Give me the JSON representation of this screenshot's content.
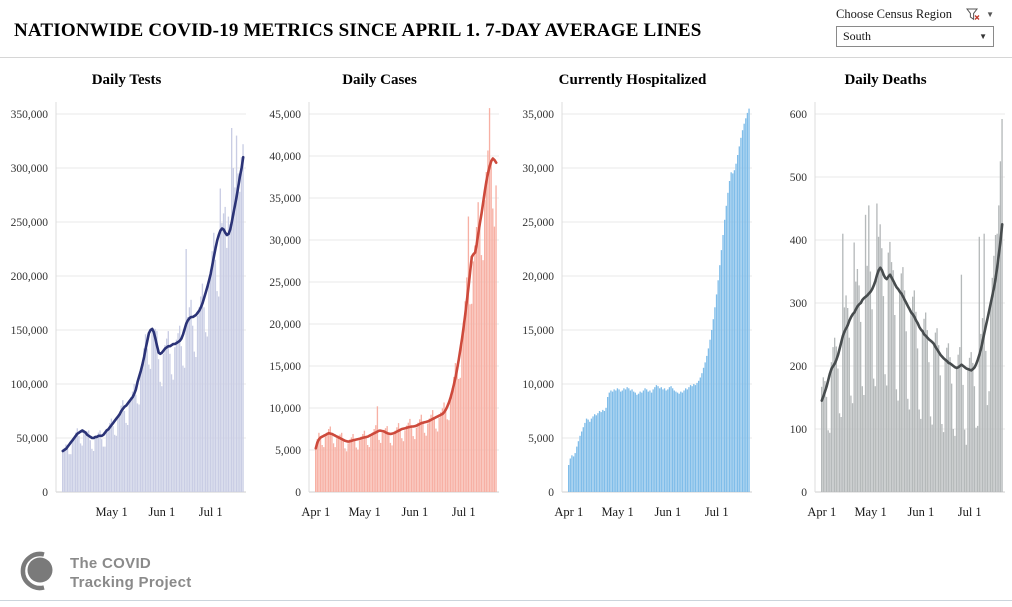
{
  "header": {
    "title": "NATIONWIDE COVID-19 METRICS SINCE APRIL 1. 7-DAY AVERAGE LINES"
  },
  "filter": {
    "label": "Choose Census Region",
    "value": "South",
    "funnel_icon": "clear-filter-funnel-with-red-x",
    "caret": "▼"
  },
  "footer": {
    "logo_line1": "The COVID",
    "logo_line2": "Tracking Project"
  },
  "chart_data": [
    {
      "type": "bar+line",
      "title": "Daily Tests",
      "x_ticks": {
        "days": [
          30,
          61,
          91
        ],
        "labels": [
          "May 1",
          "Jun 1",
          "Jul 1"
        ]
      },
      "y_ticks": [
        0,
        50000,
        100000,
        150000,
        200000,
        250000,
        300000,
        350000
      ],
      "ylim": [
        0,
        364000
      ],
      "grid": true,
      "legend": "none",
      "bar_color": "#c9cde4",
      "line_color": "#2b3377",
      "bars": [
        39000,
        41000,
        44000,
        40000,
        35000,
        35000,
        47000,
        51000,
        55000,
        59000,
        52000,
        45000,
        43000,
        55000,
        56000,
        56000,
        57000,
        48000,
        40000,
        38000,
        50000,
        52000,
        55000,
        57000,
        49000,
        42000,
        42000,
        56000,
        59000,
        64000,
        68000,
        61000,
        53000,
        52000,
        69000,
        73000,
        80000,
        85000,
        75000,
        64000,
        62000,
        82000,
        88000,
        93000,
        100000,
        90000,
        82000,
        81000,
        110000,
        120000,
        133000,
        146000,
        133000,
        118000,
        114000,
        148000,
        151000,
        151000,
        149000,
        123000,
        102000,
        98000,
        128000,
        136000,
        142000,
        149000,
        128000,
        109000,
        104000,
        134000,
        141000,
        147000,
        154000,
        135000,
        117000,
        115000,
        225000,
        162000,
        171000,
        178000,
        154000,
        130000,
        125000,
        163000,
        171000,
        181000,
        193000,
        171000,
        148000,
        144000,
        192000,
        206000,
        223000,
        240000,
        215000,
        186000,
        181000,
        281000,
        249000,
        258000,
        264000,
        226000,
        255000,
        248000,
        337000,
        300000,
        282000,
        330000,
        295000,
        278000,
        310000,
        322000
      ],
      "line": [
        38000,
        39000,
        40000,
        42000,
        44000,
        46000,
        48000,
        50000,
        52000,
        54000,
        55000,
        56000,
        57000,
        56000,
        55000,
        53000,
        52000,
        51000,
        50000,
        50000,
        51000,
        51000,
        52000,
        52000,
        52000,
        53000,
        55000,
        57000,
        58000,
        60000,
        62000,
        64000,
        66000,
        68000,
        70000,
        72000,
        75000,
        77000,
        79000,
        80000,
        82000,
        84000,
        86000,
        88000,
        91000,
        95000,
        102000,
        107000,
        112000,
        118000,
        125000,
        133000,
        140000,
        147000,
        150000,
        151000,
        148000,
        142000,
        135000,
        129000,
        128000,
        129000,
        131000,
        133000,
        134000,
        135000,
        135000,
        136000,
        137000,
        137000,
        138000,
        139000,
        140000,
        142000,
        146000,
        151000,
        156000,
        159000,
        161000,
        162000,
        162000,
        163000,
        164000,
        166000,
        168000,
        171000,
        175000,
        180000,
        185000,
        190000,
        196000,
        202000,
        210000,
        218000,
        226000,
        233000,
        238000,
        242000,
        244000,
        243000,
        240000,
        238000,
        239000,
        243000,
        250000,
        258000,
        266000,
        274000,
        283000,
        292000,
        300000,
        310000
      ]
    },
    {
      "type": "bar+line",
      "title": "Daily Cases",
      "x_ticks": {
        "days": [
          0,
          30,
          61,
          91
        ],
        "labels": [
          "Apr 1",
          "May 1",
          "Jun 1",
          "Jul 1"
        ]
      },
      "y_ticks": [
        0,
        5000,
        10000,
        15000,
        20000,
        25000,
        30000,
        35000,
        40000,
        45000
      ],
      "ylim": [
        0,
        46500
      ],
      "grid": true,
      "legend": "none",
      "bar_color": "#f7b0a4",
      "line_color": "#cd4a3c",
      "bars": [
        5350,
        6300,
        7050,
        6500,
        5600,
        5350,
        6600,
        7100,
        7500,
        7800,
        6900,
        5800,
        5350,
        6400,
        6700,
        6850,
        7050,
        6200,
        5200,
        4850,
        5800,
        6250,
        6500,
        6900,
        6200,
        5300,
        5050,
        6150,
        6600,
        6900,
        7300,
        6550,
        5600,
        5350,
        6600,
        7100,
        7500,
        7950,
        10200,
        6200,
        5850,
        7050,
        7400,
        7600,
        7850,
        6950,
        5850,
        5550,
        6800,
        7300,
        7700,
        8200,
        7400,
        6400,
        6050,
        7350,
        7900,
        8250,
        8700,
        7800,
        6650,
        6300,
        7650,
        8250,
        8650,
        9200,
        8250,
        7050,
        6700,
        8150,
        8750,
        9200,
        9750,
        8800,
        7550,
        7200,
        8850,
        9500,
        9950,
        10650,
        9800,
        8650,
        8550,
        10950,
        12350,
        13700,
        15350,
        14700,
        13450,
        13600,
        17750,
        20300,
        22700,
        25550,
        32800,
        22350,
        22400,
        27450,
        29350,
        31550,
        34500,
        32000,
        28200,
        27600,
        34750,
        38100,
        40650,
        45700,
        39400,
        33750,
        31600,
        36500
      ],
      "line": [
        5200,
        5900,
        6300,
        6500,
        6600,
        6700,
        6800,
        6900,
        7000,
        6950,
        6900,
        6800,
        6700,
        6600,
        6500,
        6400,
        6300,
        6200,
        6100,
        6050,
        6000,
        6050,
        6100,
        6150,
        6200,
        6250,
        6300,
        6350,
        6400,
        6450,
        6500,
        6550,
        6600,
        6700,
        6800,
        6900,
        7000,
        7100,
        7200,
        7300,
        7300,
        7250,
        7200,
        7100,
        7000,
        6950,
        6900,
        6950,
        7000,
        7100,
        7200,
        7300,
        7400,
        7500,
        7550,
        7600,
        7650,
        7700,
        7750,
        7800,
        7800,
        7850,
        7900,
        8000,
        8100,
        8200,
        8250,
        8300,
        8350,
        8400,
        8500,
        8600,
        8700,
        8800,
        8900,
        9000,
        9100,
        9200,
        9300,
        9500,
        9800,
        10200,
        10700,
        11300,
        12000,
        12800,
        13700,
        14700,
        15800,
        17000,
        18300,
        19700,
        21200,
        22800,
        24500,
        26300,
        28000,
        28300,
        28500,
        29500,
        30800,
        32000,
        33200,
        34500,
        35800,
        37000,
        38000,
        38800,
        39400,
        39700,
        39500,
        39200
      ]
    },
    {
      "type": "bar",
      "title": "Currently Hospitalized",
      "x_ticks": {
        "days": [
          0,
          30,
          61,
          91
        ],
        "labels": [
          "Apr 1",
          "May 1",
          "Jun 1",
          "Jul 1"
        ]
      },
      "y_ticks": [
        0,
        5000,
        10000,
        15000,
        20000,
        25000,
        30000,
        35000
      ],
      "ylim": [
        0,
        36500
      ],
      "grid": true,
      "legend": "none",
      "bar_color": "#80bde9",
      "line_color": null,
      "bars": [
        2500,
        3100,
        3400,
        3300,
        3600,
        4200,
        4700,
        5200,
        5600,
        6000,
        6400,
        6800,
        6700,
        6500,
        6800,
        7000,
        7200,
        7100,
        7300,
        7500,
        7400,
        7600,
        7500,
        7800,
        8800,
        9200,
        9400,
        9300,
        9500,
        9400,
        9600,
        9500,
        9300,
        9400,
        9600,
        9500,
        9700,
        9600,
        9400,
        9500,
        9300,
        9200,
        9000,
        9100,
        9300,
        9200,
        9400,
        9600,
        9500,
        9300,
        9400,
        9200,
        9500,
        9700,
        9900,
        9800,
        9600,
        9700,
        9500,
        9600,
        9400,
        9500,
        9700,
        9800,
        9600,
        9400,
        9300,
        9200,
        9100,
        9300,
        9200,
        9400,
        9600,
        9500,
        9700,
        9900,
        9800,
        10000,
        9900,
        10100,
        10300,
        10600,
        11000,
        11500,
        12000,
        12600,
        13300,
        14100,
        15000,
        16000,
        17100,
        18300,
        19600,
        21000,
        22400,
        23800,
        25200,
        26500,
        27700,
        28800,
        29600,
        29500,
        29800,
        30400,
        31200,
        32000,
        32800,
        33500,
        34100,
        34600,
        35100,
        35500
      ],
      "line": null
    },
    {
      "type": "bar+line",
      "title": "Daily Deaths",
      "x_ticks": {
        "days": [
          0,
          30,
          61,
          91
        ],
        "labels": [
          "Apr 1",
          "May 1",
          "Jun 1",
          "Jul 1"
        ]
      },
      "y_ticks": [
        0,
        100,
        200,
        300,
        400,
        500,
        600
      ],
      "ylim": [
        0,
        620
      ],
      "grid": true,
      "legend": "none",
      "bar_color": "#b5b9ba",
      "line_color": "#474c4e",
      "bars": [
        167,
        182,
        176,
        151,
        98,
        94,
        206,
        230,
        245,
        231,
        196,
        125,
        119,
        410,
        293,
        312,
        292,
        245,
        153,
        141,
        396,
        334,
        354,
        328,
        270,
        168,
        154,
        440,
        359,
        455,
        350,
        290,
        180,
        168,
        458,
        405,
        425,
        387,
        311,
        187,
        169,
        380,
        397,
        365,
        352,
        281,
        163,
        145,
        318,
        347,
        357,
        320,
        255,
        148,
        131,
        285,
        310,
        320,
        286,
        228,
        131,
        116,
        255,
        275,
        285,
        257,
        206,
        120,
        107,
        235,
        253,
        260,
        233,
        185,
        108,
        95,
        210,
        229,
        236,
        214,
        172,
        100,
        89,
        197,
        218,
        230,
        345,
        170,
        99,
        75,
        195,
        213,
        222,
        205,
        168,
        102,
        105,
        405,
        251,
        276,
        410,
        224,
        138,
        160,
        300,
        340,
        375,
        408,
        410,
        455,
        525,
        592
      ],
      "line": [
        145,
        152,
        160,
        168,
        178,
        188,
        196,
        200,
        204,
        210,
        218,
        228,
        238,
        248,
        255,
        260,
        265,
        272,
        278,
        282,
        285,
        290,
        295,
        298,
        300,
        305,
        308,
        310,
        312,
        315,
        318,
        322,
        328,
        335,
        345,
        352,
        356,
        352,
        345,
        340,
        338,
        342,
        345,
        340,
        335,
        330,
        325,
        322,
        318,
        315,
        310,
        305,
        300,
        295,
        290,
        285,
        282,
        278,
        272,
        268,
        262,
        258,
        255,
        250,
        248,
        245,
        242,
        240,
        238,
        235,
        230,
        226,
        222,
        218,
        215,
        212,
        210,
        208,
        205,
        204,
        202,
        200,
        198,
        197,
        198,
        200,
        202,
        200,
        198,
        196,
        195,
        194,
        193,
        195,
        198,
        203,
        210,
        218,
        228,
        240,
        252,
        264,
        276,
        288,
        300,
        312,
        325,
        340,
        358,
        378,
        400,
        425
      ]
    }
  ]
}
